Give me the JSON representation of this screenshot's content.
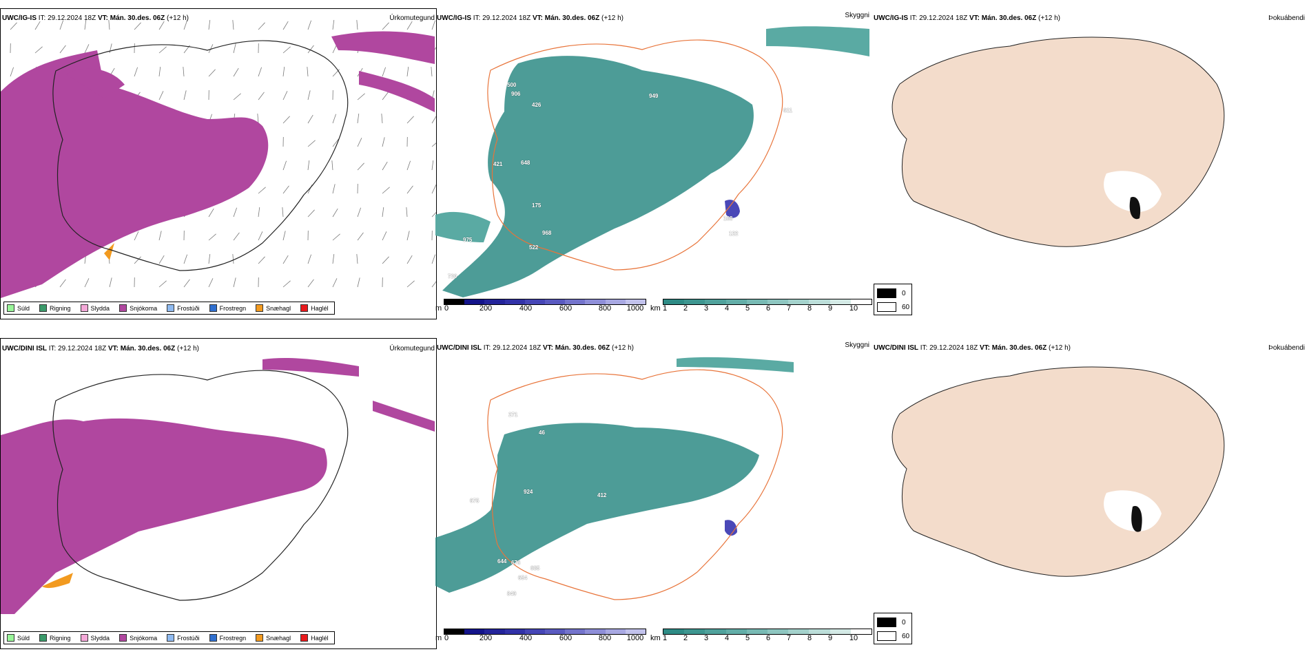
{
  "rows": [
    {
      "model": "UWC/IG-IS",
      "it_label": "IT:",
      "it_value": "29.12.2024 18Z",
      "vt_label": "VT:",
      "vt_value": "Mán. 30.des. 06Z",
      "lead": "(+12 h)",
      "precip_title": "Úrkomutegund",
      "vis_title": "Skyggni",
      "fog_title": "Þokuábendi",
      "vis_labels": [
        "500",
        "906",
        "426",
        "949",
        "648",
        "421",
        "175",
        "975",
        "968",
        "522",
        "168",
        "122",
        "720",
        "611"
      ]
    },
    {
      "model": "UWC/DINI ISL",
      "it_label": "IT:",
      "it_value": "29.12.2024 18Z",
      "vt_label": "VT:",
      "vt_value": "Mán. 30.des. 06Z",
      "lead": "(+12 h)",
      "precip_title": "Úrkomutegund",
      "vis_title": "Skyggni",
      "fog_title": "Þokuábendi",
      "vis_labels": [
        "271",
        "46",
        "924",
        "412",
        "840",
        "644",
        "676",
        "685",
        "654",
        "675"
      ]
    }
  ],
  "precip_legend": [
    {
      "label": "Súld",
      "color": "#98f598"
    },
    {
      "label": "Rigning",
      "color": "#3a9a6a"
    },
    {
      "label": "Slydda",
      "color": "#f4a8d8"
    },
    {
      "label": "Snjókoma",
      "color": "#b0479f"
    },
    {
      "label": "Frostúði",
      "color": "#8fbaf0"
    },
    {
      "label": "Frostregn",
      "color": "#2f6fcf"
    },
    {
      "label": "Snæhagl",
      "color": "#f29a1f"
    },
    {
      "label": "Haglél",
      "color": "#e8191c"
    }
  ],
  "ceiling_bar": {
    "unit": "m",
    "ticks": [
      "0",
      "200",
      "400",
      "600",
      "800",
      "1000"
    ]
  },
  "visibility_bar": {
    "unit": "km",
    "ticks": [
      "1",
      "2",
      "3",
      "4",
      "5",
      "6",
      "7",
      "8",
      "9",
      "10"
    ]
  },
  "fog_legend": {
    "low": "0",
    "high": "60"
  },
  "colors": {
    "snow": "#b0479f",
    "vis": "#2e8b85",
    "land": "#f3dccb",
    "roads": "#e8743a",
    "rivers": "#7a8ff0",
    "ceiling": "#4a48b8"
  }
}
